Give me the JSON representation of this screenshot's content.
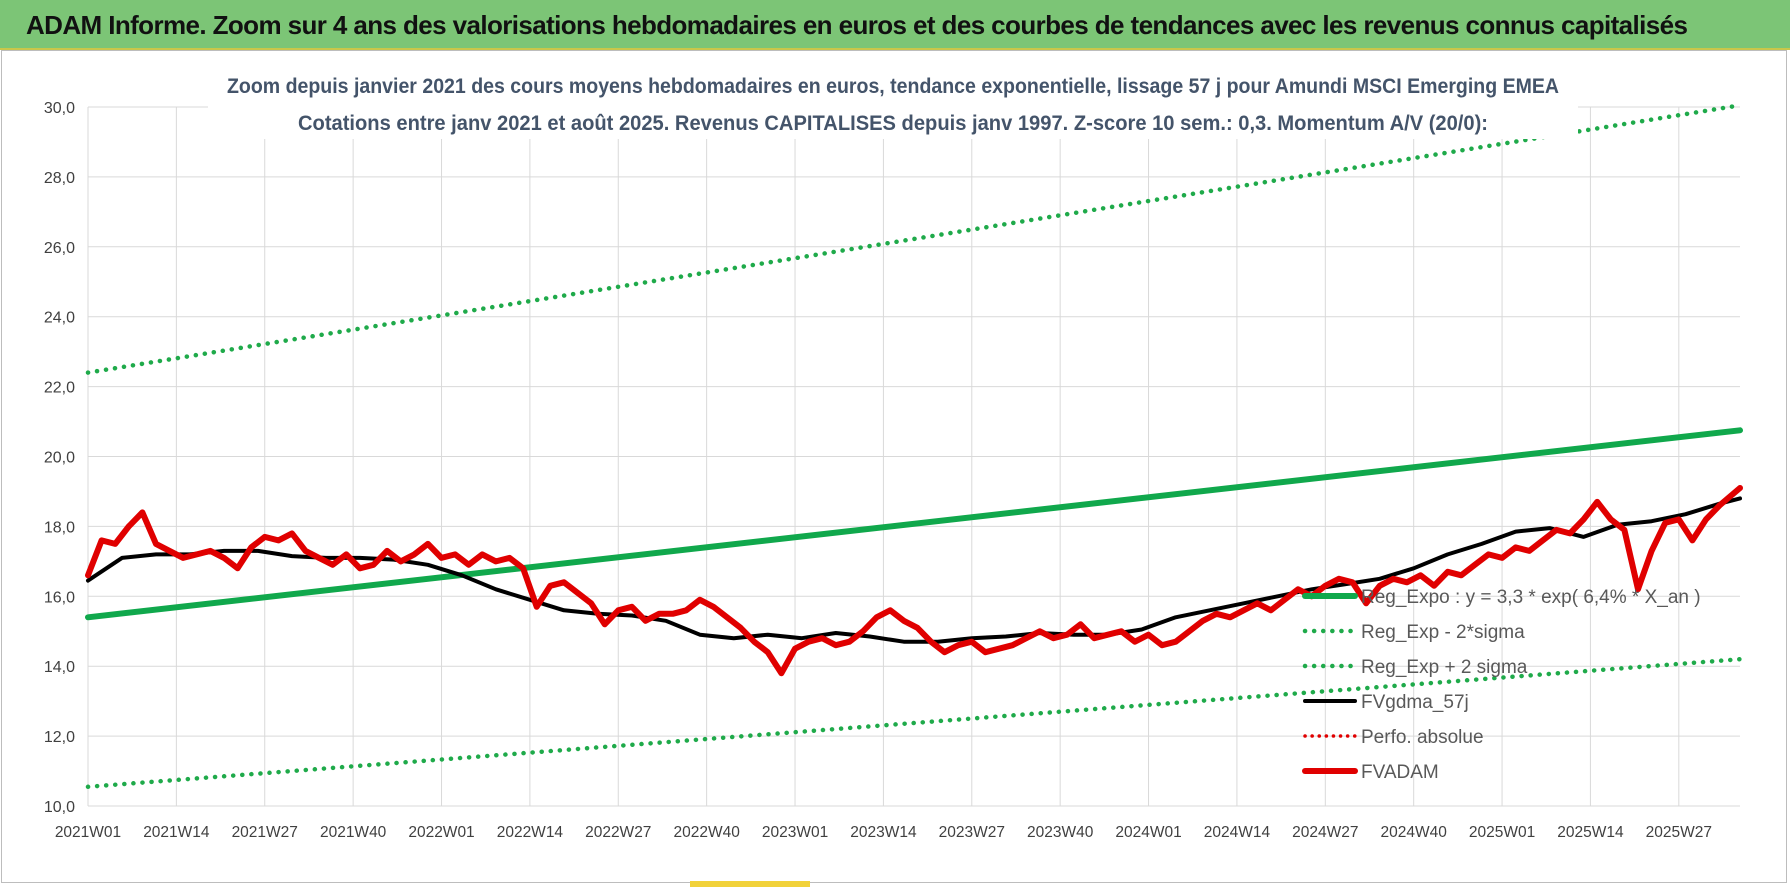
{
  "banner": {
    "title": "ADAM Informe. Zoom sur 4 ans des valorisations hebdomadaires en euros et des courbes de tendances avec les revenus connus capitalisés"
  },
  "chart_data": {
    "type": "line",
    "title": "Zoom depuis janvier 2021 des cours moyens hebdomadaires en euros, tendance exponentielle, lissage 57 j pour Amundi MSCI Emerging EMEA",
    "subtitle": "Cotations entre janv 2021 et août 2025. Revenus CAPITALISES depuis janv 1997. Z-score 10 sem.: 0,3. Momentum A/V (20/0):",
    "ylim": [
      10,
      30
    ],
    "y_ticks": [
      "10,0",
      "12,0",
      "14,0",
      "16,0",
      "18,0",
      "20,0",
      "22,0",
      "24,0",
      "26,0",
      "28,0",
      "30,0"
    ],
    "x_ticks": [
      "2021W01",
      "2021W14",
      "2021W27",
      "2021W40",
      "2022W01",
      "2022W14",
      "2022W27",
      "2022W40",
      "2023W01",
      "2023W14",
      "2023W27",
      "2023W40",
      "2024W01",
      "2024W14",
      "2024W27",
      "2024W40",
      "2025W01",
      "2025W14",
      "2025W27"
    ],
    "grid": true,
    "legend_position": "right-middle",
    "colors": {
      "reg_expo": "#10a84c",
      "sigma": "#1faa4a",
      "fvgdma": "#000000",
      "perfo": "#e00000",
      "fvadam": "#e00000",
      "banner": "#7cc576",
      "title_text": "#44546a"
    },
    "series": [
      {
        "name": "Reg_Expo : y = 3,3 * exp( 6,4% *  X_an )",
        "style": "solid",
        "x": [
          0,
          243
        ],
        "values": [
          15.4,
          20.75
        ]
      },
      {
        "name": "Reg_Exp - 2*sigma",
        "style": "dotted",
        "x": [
          0,
          243
        ],
        "values": [
          10.55,
          14.2
        ]
      },
      {
        "name": "Reg_Exp + 2 sigma",
        "style": "dotted",
        "x": [
          0,
          243
        ],
        "values": [
          22.4,
          30.05
        ]
      },
      {
        "name": "FVgdma_57j",
        "style": "solid",
        "x": [
          0,
          5,
          10,
          15,
          20,
          25,
          30,
          35,
          40,
          45,
          50,
          55,
          60,
          65,
          70,
          75,
          80,
          85,
          90,
          95,
          100,
          105,
          110,
          115,
          120,
          125,
          130,
          135,
          140,
          145,
          150,
          155,
          160,
          165,
          170,
          175,
          180,
          185,
          190,
          195,
          200,
          205,
          210,
          215,
          220,
          225,
          230,
          235,
          240,
          243
        ],
        "values": [
          16.45,
          17.1,
          17.2,
          17.2,
          17.3,
          17.3,
          17.15,
          17.1,
          17.1,
          17.05,
          16.9,
          16.6,
          16.2,
          15.9,
          15.6,
          15.5,
          15.45,
          15.3,
          14.9,
          14.8,
          14.9,
          14.8,
          14.95,
          14.85,
          14.7,
          14.7,
          14.8,
          14.85,
          14.95,
          14.9,
          14.9,
          15.05,
          15.4,
          15.6,
          15.8,
          16.0,
          16.2,
          16.35,
          16.5,
          16.8,
          17.2,
          17.5,
          17.85,
          17.95,
          17.7,
          18.05,
          18.15,
          18.35,
          18.65,
          18.8
        ]
      },
      {
        "name": "Perfo. absolue",
        "style": "dotted",
        "x": [],
        "values": []
      },
      {
        "name": "FVADAM",
        "style": "thick",
        "x": [
          0,
          2,
          4,
          6,
          8,
          10,
          12,
          14,
          16,
          18,
          20,
          22,
          24,
          26,
          28,
          30,
          32,
          34,
          36,
          38,
          40,
          42,
          44,
          46,
          48,
          50,
          52,
          54,
          56,
          58,
          60,
          62,
          64,
          66,
          68,
          70,
          72,
          74,
          76,
          78,
          80,
          82,
          84,
          86,
          88,
          90,
          92,
          94,
          96,
          98,
          100,
          102,
          104,
          106,
          108,
          110,
          112,
          114,
          116,
          118,
          120,
          122,
          124,
          126,
          128,
          130,
          132,
          134,
          136,
          138,
          140,
          142,
          144,
          146,
          148,
          150,
          152,
          154,
          156,
          158,
          160,
          162,
          164,
          166,
          168,
          170,
          172,
          174,
          176,
          178,
          180,
          182,
          184,
          186,
          188,
          190,
          192,
          194,
          196,
          198,
          200,
          202,
          204,
          206,
          208,
          210,
          212,
          214,
          216,
          218,
          220,
          222,
          224,
          226,
          228,
          230,
          232,
          234,
          236,
          238,
          240,
          243
        ],
        "values": [
          16.6,
          17.6,
          17.5,
          18.0,
          18.4,
          17.5,
          17.3,
          17.1,
          17.2,
          17.3,
          17.1,
          16.8,
          17.4,
          17.7,
          17.6,
          17.8,
          17.3,
          17.1,
          16.9,
          17.2,
          16.8,
          16.9,
          17.3,
          17.0,
          17.2,
          17.5,
          17.1,
          17.2,
          16.9,
          17.2,
          17.0,
          17.1,
          16.8,
          15.7,
          16.3,
          16.4,
          16.1,
          15.8,
          15.2,
          15.6,
          15.7,
          15.3,
          15.5,
          15.5,
          15.6,
          15.9,
          15.7,
          15.4,
          15.1,
          14.7,
          14.4,
          13.8,
          14.5,
          14.7,
          14.8,
          14.6,
          14.7,
          15.0,
          15.4,
          15.6,
          15.3,
          15.1,
          14.7,
          14.4,
          14.6,
          14.7,
          14.4,
          14.5,
          14.6,
          14.8,
          15.0,
          14.8,
          14.9,
          15.2,
          14.8,
          14.9,
          15.0,
          14.7,
          14.9,
          14.6,
          14.7,
          15.0,
          15.3,
          15.5,
          15.4,
          15.6,
          15.8,
          15.6,
          15.9,
          16.2,
          16.0,
          16.3,
          16.5,
          16.4,
          15.8,
          16.3,
          16.5,
          16.4,
          16.6,
          16.3,
          16.7,
          16.6,
          16.9,
          17.2,
          17.1,
          17.4,
          17.3,
          17.6,
          17.9,
          17.8,
          18.2,
          18.7,
          18.2,
          17.9,
          16.2,
          17.3,
          18.1,
          18.2,
          17.6,
          18.2,
          18.6,
          19.1
        ]
      }
    ]
  }
}
